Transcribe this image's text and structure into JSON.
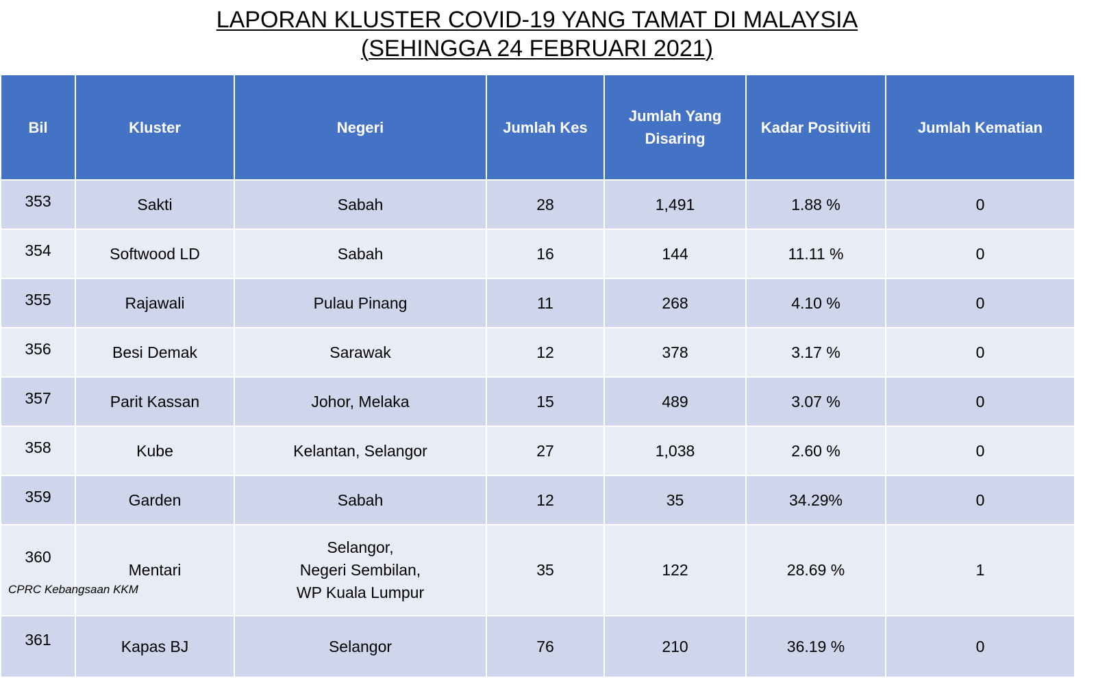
{
  "title": {
    "line1": "LAPORAN KLUSTER COVID-19 YANG TAMAT DI MALAYSIA",
    "line2": "(SEHINGGA 24 FEBRUARI 2021)"
  },
  "table": {
    "headers": {
      "bil": "Bil",
      "kluster": "Kluster",
      "negeri": "Negeri",
      "jumlah_kes": "Jumlah Kes",
      "jumlah_disaring_1": "Jumlah Yang",
      "jumlah_disaring_2": "Disaring",
      "kadar_positiviti": "Kadar Positiviti",
      "jumlah_kematian": "Jumlah Kematian"
    },
    "rows": [
      {
        "bil": "353",
        "kluster": "Sakti",
        "negeri": [
          "Sabah"
        ],
        "kes": "28",
        "disaring": "1,491",
        "positiviti": "1.88 %",
        "kematian": "0"
      },
      {
        "bil": "354",
        "kluster": "Softwood LD",
        "negeri": [
          "Sabah"
        ],
        "kes": "16",
        "disaring": "144",
        "positiviti": "11.11 %",
        "kematian": "0"
      },
      {
        "bil": "355",
        "kluster": "Rajawali",
        "negeri": [
          "Pulau Pinang"
        ],
        "kes": "11",
        "disaring": "268",
        "positiviti": "4.10 %",
        "kematian": "0"
      },
      {
        "bil": "356",
        "kluster": "Besi Demak",
        "negeri": [
          "Sarawak"
        ],
        "kes": "12",
        "disaring": "378",
        "positiviti": "3.17 %",
        "kematian": "0"
      },
      {
        "bil": "357",
        "kluster": "Parit Kassan",
        "negeri": [
          "Johor, Melaka"
        ],
        "kes": "15",
        "disaring": "489",
        "positiviti": "3.07 %",
        "kematian": "0"
      },
      {
        "bil": "358",
        "kluster": "Kube",
        "negeri": [
          "Kelantan, Selangor"
        ],
        "kes": "27",
        "disaring": "1,038",
        "positiviti": "2.60 %",
        "kematian": "0"
      },
      {
        "bil": "359",
        "kluster": "Garden",
        "negeri": [
          "Sabah"
        ],
        "kes": "12",
        "disaring": "35",
        "positiviti": "34.29%",
        "kematian": "0"
      },
      {
        "bil": "360",
        "kluster": "Mentari",
        "negeri": [
          "Selangor,",
          "Negeri Sembilan,",
          "WP Kuala Lumpur"
        ],
        "kes": "35",
        "disaring": "122",
        "positiviti": "28.69 %",
        "kematian": "1"
      },
      {
        "bil": "361",
        "kluster": "Kapas BJ",
        "negeri": [
          "Selangor"
        ],
        "kes": "76",
        "disaring": "210",
        "positiviti": "36.19 %",
        "kematian": "0"
      }
    ]
  },
  "footer": {
    "source": "CPRC Kebangsaan KKM"
  },
  "colors": {
    "header_bg": "#4472c4",
    "row_dark": "#cfd5ea",
    "row_light": "#e9ebf5"
  }
}
